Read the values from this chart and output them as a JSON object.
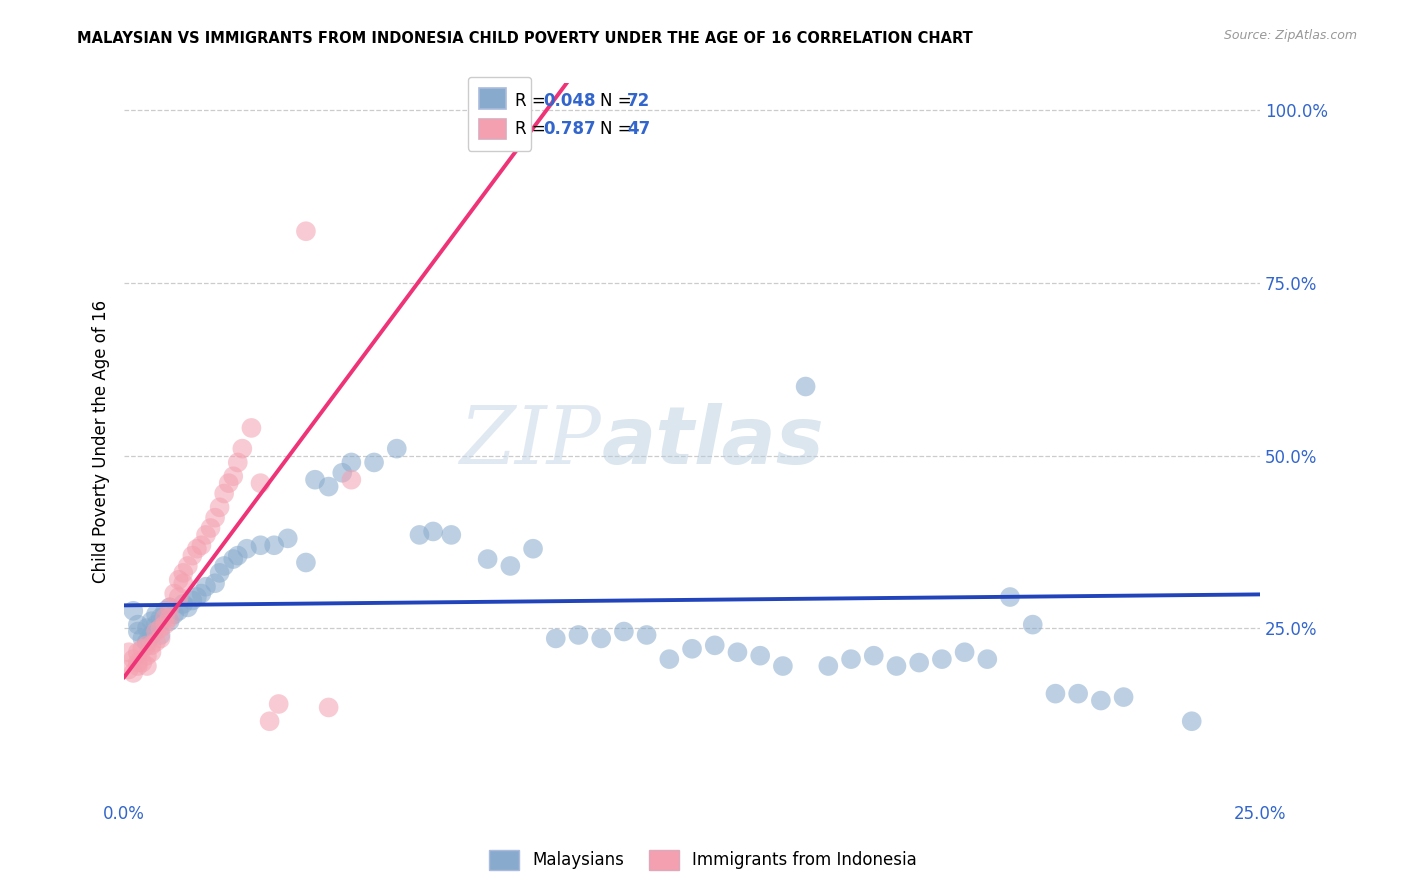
{
  "title": "MALAYSIAN VS IMMIGRANTS FROM INDONESIA CHILD POVERTY UNDER THE AGE OF 16 CORRELATION CHART",
  "source": "Source: ZipAtlas.com",
  "ylabel": "Child Poverty Under the Age of 16",
  "xlim": [
    0.0,
    0.25
  ],
  "ylim": [
    0.0,
    1.04
  ],
  "xtick_vals": [
    0.0,
    0.05,
    0.1,
    0.15,
    0.2,
    0.25
  ],
  "xticklabels": [
    "0.0%",
    "",
    "",
    "",
    "",
    "25.0%"
  ],
  "ytick_vals": [
    0.25,
    0.5,
    0.75,
    1.0
  ],
  "yticklabels": [
    "25.0%",
    "50.0%",
    "75.0%",
    "100.0%"
  ],
  "blue_color": "#88AACC",
  "pink_color": "#F4A0B0",
  "blue_line_color": "#2244BB",
  "pink_line_color": "#EE3377",
  "watermark_zip": "ZIP",
  "watermark_atlas": "atlas",
  "blue_r": 0.048,
  "blue_n": 72,
  "pink_r": 0.787,
  "pink_n": 47,
  "blue_scatter_x": [
    0.002,
    0.003,
    0.003,
    0.004,
    0.005,
    0.005,
    0.006,
    0.006,
    0.007,
    0.007,
    0.008,
    0.008,
    0.009,
    0.01,
    0.01,
    0.011,
    0.012,
    0.013,
    0.014,
    0.015,
    0.016,
    0.017,
    0.018,
    0.02,
    0.021,
    0.022,
    0.024,
    0.025,
    0.027,
    0.03,
    0.033,
    0.036,
    0.04,
    0.042,
    0.045,
    0.048,
    0.05,
    0.055,
    0.06,
    0.065,
    0.068,
    0.072,
    0.08,
    0.085,
    0.09,
    0.095,
    0.1,
    0.105,
    0.11,
    0.115,
    0.12,
    0.125,
    0.13,
    0.135,
    0.14,
    0.145,
    0.15,
    0.155,
    0.16,
    0.165,
    0.17,
    0.175,
    0.18,
    0.185,
    0.19,
    0.195,
    0.2,
    0.205,
    0.21,
    0.215,
    0.22,
    0.235
  ],
  "blue_scatter_y": [
    0.275,
    0.255,
    0.245,
    0.235,
    0.25,
    0.23,
    0.24,
    0.26,
    0.27,
    0.255,
    0.265,
    0.24,
    0.275,
    0.28,
    0.26,
    0.27,
    0.275,
    0.285,
    0.28,
    0.29,
    0.295,
    0.3,
    0.31,
    0.315,
    0.33,
    0.34,
    0.35,
    0.355,
    0.365,
    0.37,
    0.37,
    0.38,
    0.345,
    0.465,
    0.455,
    0.475,
    0.49,
    0.49,
    0.51,
    0.385,
    0.39,
    0.385,
    0.35,
    0.34,
    0.365,
    0.235,
    0.24,
    0.235,
    0.245,
    0.24,
    0.205,
    0.22,
    0.225,
    0.215,
    0.21,
    0.195,
    0.6,
    0.195,
    0.205,
    0.21,
    0.195,
    0.2,
    0.205,
    0.215,
    0.205,
    0.295,
    0.255,
    0.155,
    0.155,
    0.145,
    0.15,
    0.115
  ],
  "pink_scatter_x": [
    0.001,
    0.001,
    0.002,
    0.002,
    0.003,
    0.003,
    0.003,
    0.004,
    0.004,
    0.005,
    0.005,
    0.005,
    0.006,
    0.006,
    0.007,
    0.007,
    0.008,
    0.008,
    0.009,
    0.009,
    0.01,
    0.01,
    0.011,
    0.012,
    0.012,
    0.013,
    0.013,
    0.014,
    0.015,
    0.016,
    0.017,
    0.018,
    0.019,
    0.02,
    0.021,
    0.022,
    0.023,
    0.024,
    0.025,
    0.026,
    0.028,
    0.03,
    0.032,
    0.034,
    0.04,
    0.045,
    0.05
  ],
  "pink_scatter_y": [
    0.215,
    0.19,
    0.205,
    0.185,
    0.2,
    0.215,
    0.195,
    0.2,
    0.22,
    0.21,
    0.195,
    0.225,
    0.225,
    0.215,
    0.23,
    0.245,
    0.235,
    0.25,
    0.255,
    0.265,
    0.265,
    0.28,
    0.3,
    0.295,
    0.32,
    0.315,
    0.33,
    0.34,
    0.355,
    0.365,
    0.37,
    0.385,
    0.395,
    0.41,
    0.425,
    0.445,
    0.46,
    0.47,
    0.49,
    0.51,
    0.54,
    0.46,
    0.115,
    0.14,
    0.825,
    0.135,
    0.465
  ],
  "grid_yticks": [
    0.25,
    0.5,
    0.75,
    1.0
  ]
}
